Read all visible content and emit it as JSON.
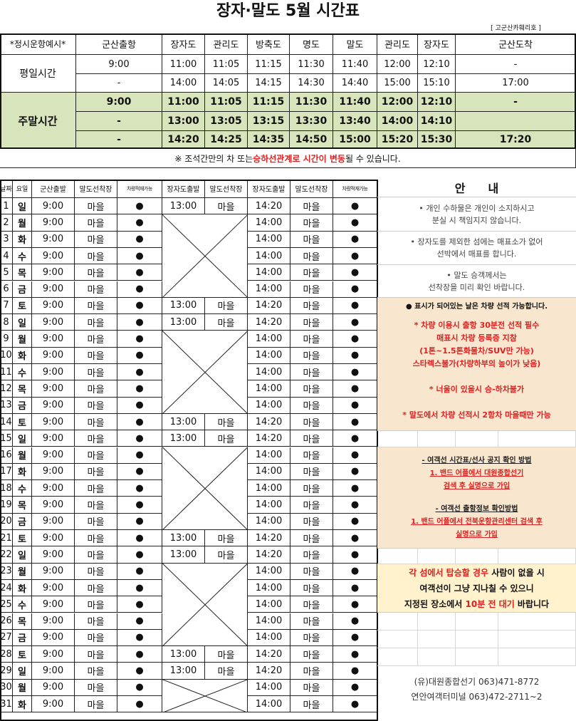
{
  "title": "장자·말도 5월 시간표",
  "operator_tag": "[ 고군산카훼리호 ]",
  "top": {
    "corner": "*정시운항예시*",
    "headers": [
      "군산출항",
      "장자도",
      "관리도",
      "방축도",
      "명도",
      "말도",
      "관리도",
      "장자도",
      "군산도착"
    ],
    "weekday_label": "평일시간",
    "weekday_rows": [
      [
        "9:00",
        "11:00",
        "11:05",
        "11:15",
        "11:30",
        "11:40",
        "12:00",
        "12:10",
        "-"
      ],
      [
        "-",
        "14:00",
        "14:05",
        "14:15",
        "14:30",
        "14:40",
        "15:00",
        "15:10",
        "17:00"
      ]
    ],
    "weekend_label": "주말시간",
    "weekend_rows": [
      [
        "9:00",
        "11:00",
        "11:05",
        "11:15",
        "11:30",
        "11:40",
        "12:00",
        "12:10",
        "-"
      ],
      [
        "-",
        "13:00",
        "13:05",
        "13:15",
        "13:30",
        "13:40",
        "14:00",
        "14:10",
        ""
      ],
      [
        "-",
        "14:20",
        "14:25",
        "14:35",
        "14:50",
        "15:00",
        "15:20",
        "15:30",
        "17:20"
      ]
    ],
    "note_pre": "※ 조석간만의 차 또는 ",
    "note_red": "승하선관계로 시간이 변동",
    "note_post": " 될 수 있습니다."
  },
  "daily": {
    "headers": [
      "날짜",
      "요일",
      "군산출발",
      "말도선착장",
      "차량적재가능",
      "장자도출발",
      "말도선착장",
      "장자도출발",
      "말도선착장",
      "차량적재가능"
    ],
    "rows": [
      [
        "1",
        "일",
        "9:00",
        "마을",
        "●",
        "13:00",
        "마을",
        "14:20",
        "마을",
        "●"
      ],
      [
        "2",
        "월",
        "9:00",
        "마을",
        "●",
        "",
        "",
        "14:00",
        "마을",
        "●"
      ],
      [
        "3",
        "화",
        "9:00",
        "마을",
        "●",
        "",
        "",
        "14:00",
        "마을",
        "●"
      ],
      [
        "4",
        "수",
        "9:00",
        "마을",
        "●",
        "",
        "",
        "14:00",
        "마을",
        "●"
      ],
      [
        "5",
        "목",
        "9:00",
        "마을",
        "●",
        "",
        "",
        "14:00",
        "마을",
        "●"
      ],
      [
        "6",
        "금",
        "9:00",
        "마을",
        "●",
        "",
        "",
        "14:00",
        "마을",
        "●"
      ],
      [
        "7",
        "토",
        "9:00",
        "마을",
        "●",
        "13:00",
        "마을",
        "14:20",
        "마을",
        "●"
      ],
      [
        "8",
        "일",
        "9:00",
        "마을",
        "●",
        "13:00",
        "마을",
        "14:20",
        "마을",
        "●"
      ],
      [
        "9",
        "월",
        "9:00",
        "마을",
        "●",
        "",
        "",
        "14:00",
        "마을",
        "●"
      ],
      [
        "10",
        "화",
        "9:00",
        "마을",
        "●",
        "",
        "",
        "14:00",
        "마을",
        "●"
      ],
      [
        "11",
        "수",
        "9:00",
        "마을",
        "●",
        "",
        "",
        "14:00",
        "마을",
        "●"
      ],
      [
        "12",
        "목",
        "9:00",
        "마을",
        "●",
        "",
        "",
        "14:00",
        "마을",
        "●"
      ],
      [
        "13",
        "금",
        "9:00",
        "마을",
        "●",
        "",
        "",
        "14:00",
        "마을",
        "●"
      ],
      [
        "14",
        "토",
        "9:00",
        "마을",
        "●",
        "13:00",
        "마을",
        "14:20",
        "마을",
        "●"
      ],
      [
        "15",
        "일",
        "9:00",
        "마을",
        "●",
        "13:00",
        "마을",
        "14:20",
        "마을",
        "●"
      ],
      [
        "16",
        "월",
        "9:00",
        "마을",
        "●",
        "",
        "",
        "14:00",
        "마을",
        "●"
      ],
      [
        "17",
        "화",
        "9:00",
        "마을",
        "●",
        "",
        "",
        "14:00",
        "마을",
        "●"
      ],
      [
        "18",
        "수",
        "9:00",
        "마을",
        "●",
        "",
        "",
        "14:00",
        "마을",
        "●"
      ],
      [
        "19",
        "목",
        "9:00",
        "마을",
        "●",
        "",
        "",
        "14:00",
        "마을",
        "●"
      ],
      [
        "20",
        "금",
        "9:00",
        "마을",
        "●",
        "",
        "",
        "14:00",
        "마을",
        "●"
      ],
      [
        "21",
        "토",
        "9:00",
        "마을",
        "●",
        "13:00",
        "마을",
        "14:20",
        "마을",
        "●"
      ],
      [
        "22",
        "일",
        "9:00",
        "마을",
        "●",
        "13:00",
        "마을",
        "14:20",
        "마을",
        "●"
      ],
      [
        "23",
        "월",
        "9:00",
        "마을",
        "●",
        "",
        "",
        "14:00",
        "마을",
        "●"
      ],
      [
        "24",
        "화",
        "9:00",
        "마을",
        "●",
        "",
        "",
        "14:00",
        "마을",
        "●"
      ],
      [
        "25",
        "수",
        "9:00",
        "마을",
        "●",
        "",
        "",
        "14:00",
        "마을",
        "●"
      ],
      [
        "26",
        "목",
        "9:00",
        "마을",
        "●",
        "",
        "",
        "14:00",
        "마을",
        "●"
      ],
      [
        "27",
        "금",
        "9:00",
        "마을",
        "●",
        "",
        "",
        "14:00",
        "마을",
        "●"
      ],
      [
        "28",
        "토",
        "9:00",
        "마을",
        "●",
        "13:00",
        "마을",
        "14:20",
        "마을",
        "●"
      ],
      [
        "29",
        "일",
        "9:00",
        "마을",
        "●",
        "13:00",
        "마을",
        "14:20",
        "마을",
        "●"
      ],
      [
        "30",
        "월",
        "9:00",
        "마을",
        "●",
        "",
        "",
        "14:00",
        "마을",
        "●"
      ],
      [
        "31",
        "화",
        "9:00",
        "마을",
        "●",
        "",
        "",
        "14:00",
        "마을",
        "●"
      ]
    ]
  },
  "info": {
    "title": "안　　내",
    "n1": [
      "• 개인 수하물은 개인이 소지하시고",
      "분실 시 책임지지 않습니다."
    ],
    "n2": [
      "• 장자도를 제외한 섬에는 매표소가 없어",
      "선박에서 매표를 합니다."
    ],
    "n3": [
      "• 말도 승객께서는",
      "선착장을 미리 확인 바랍니다."
    ],
    "car_note": "● 표시가 되어있는 날은 차량 선적 가능합니다.",
    "car_red": [
      "* 차량 이용시 출항 30분전 선적 필수",
      "매표시 차량 등록증 지참",
      "(1톤~1.5톤화물차/SUV만 가능)",
      "스타렉스불가(차량하부의 높이가 낮음)"
    ],
    "wave": "* 너울이 있을시 승-하차불가",
    "mal": "* 말도에서 차량 선적시 2항차 마을때만 가능",
    "band1_title": "- 여객선 시간표/선사 공지 확인 방법",
    "band1": [
      "1. 밴드 어플에서 대원종합선기",
      "검색 후 실명으로 가입"
    ],
    "band2_title": "- 여객선 출항정보 확인방법",
    "band2": [
      "1. 밴드 어플에서 전북운항관리센터 검색 후",
      "실명으로 가입"
    ],
    "wait_red1": "각 섬에서 탑승할 경우",
    "wait_1": " 사람이 없을 시",
    "wait_2": "여객선이 그냥 지나칠 수 있으니",
    "wait_3": "지정된 장소에서 ",
    "wait_red3": "10분 전 대기",
    "wait_4": " 바랍니다",
    "contact1": "(유)대원종합선기  063)471-8772",
    "contact2": "연안여객터미널 063)472-2711~2"
  },
  "colors": {
    "weekend_green": "#d8e4bc",
    "beige": "#f9e6cf",
    "yellow": "#fff2cc",
    "red": "#e02020"
  }
}
